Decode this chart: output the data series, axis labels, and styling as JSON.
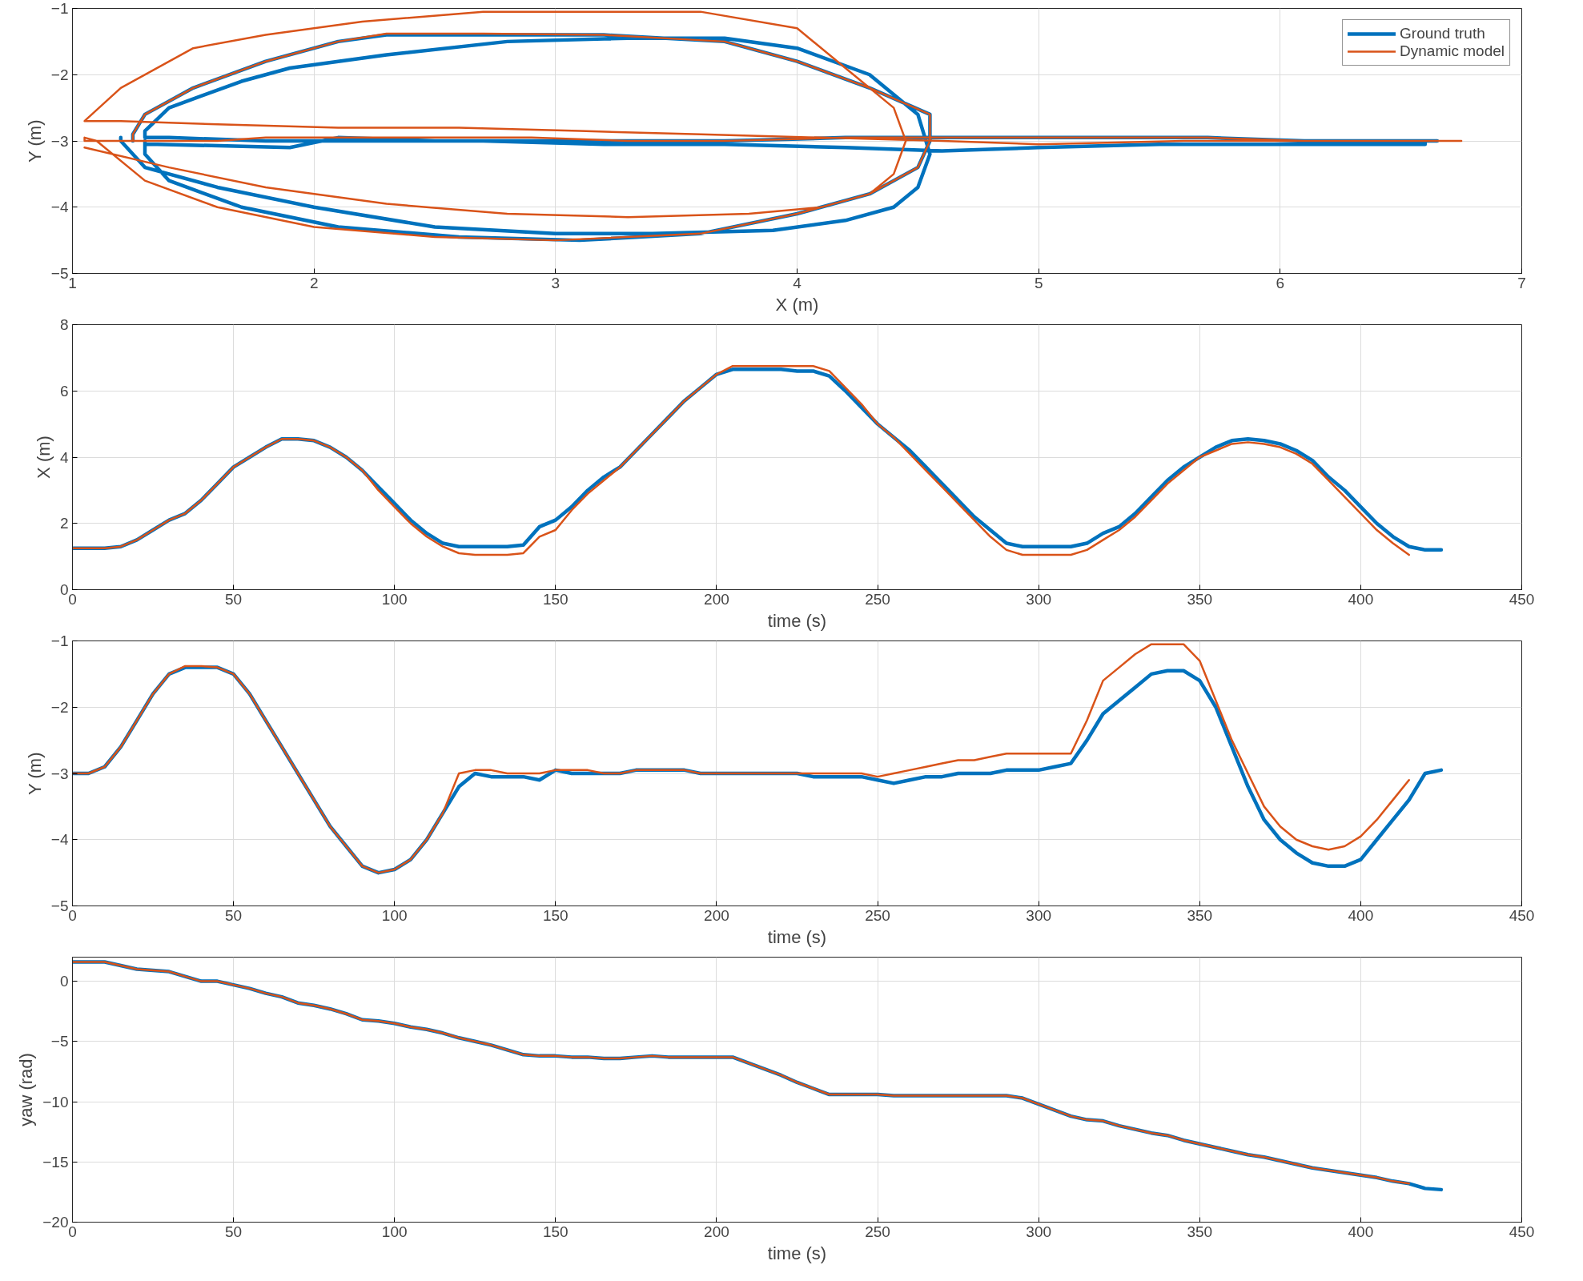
{
  "chart_data": [
    {
      "type": "line",
      "xlabel": "X (m)",
      "ylabel": "Y (m)",
      "xlim": [
        1,
        7
      ],
      "ylim": [
        -5,
        -1
      ],
      "xticks": [
        1,
        2,
        3,
        4,
        5,
        6,
        7
      ],
      "yticks": [
        -5,
        -4,
        -3,
        -2,
        -1
      ],
      "grid": true,
      "legend": "top right",
      "series": [
        {
          "name": "Ground truth",
          "color": "#0072bd",
          "x": [
            1.25,
            1.25,
            1.25,
            1.3,
            1.5,
            1.8,
            2.1,
            2.3,
            2.7,
            3.2,
            3.7,
            4.0,
            4.3,
            4.55,
            4.55,
            4.5,
            4.3,
            4.0,
            3.6,
            3.1,
            2.6,
            2.1,
            1.7,
            1.4,
            1.3,
            1.3,
            1.3,
            1.3,
            1.35,
            1.9,
            2.1,
            2.5,
            3.0,
            3.4,
            3.7,
            4.2,
            4.7,
            5.2,
            5.7,
            6.1,
            6.5,
            6.65,
            6.65,
            6.65,
            6.65,
            6.6,
            6.6,
            6.45,
            6.0,
            5.5,
            5.0,
            4.6,
            4.2,
            3.7,
            3.2,
            2.7,
            2.2,
            1.8,
            1.4,
            1.3,
            1.3,
            1.3,
            1.3,
            1.4,
            1.7,
            1.9,
            2.3,
            2.8,
            3.3,
            3.7,
            4.0,
            4.3,
            4.5,
            4.55,
            4.5,
            4.4,
            4.2,
            3.9,
            3.4,
            3.0,
            2.5,
            2.0,
            1.6,
            1.3,
            1.2,
            1.2
          ],
          "values": [
            -3.0,
            -3.0,
            -2.9,
            -2.6,
            -2.2,
            -1.8,
            -1.5,
            -1.4,
            -1.4,
            -1.4,
            -1.5,
            -1.8,
            -2.2,
            -2.6,
            -3.0,
            -3.4,
            -3.8,
            -4.1,
            -4.4,
            -4.5,
            -4.45,
            -4.3,
            -4.0,
            -3.6,
            -3.2,
            -3.0,
            -3.05,
            -3.05,
            -3.05,
            -3.1,
            -2.95,
            -3.0,
            -3.0,
            -3.0,
            -3.0,
            -2.95,
            -2.95,
            -2.95,
            -2.95,
            -3.0,
            -3.0,
            -3.0,
            -3.0,
            -3.0,
            -3.0,
            -3.0,
            -3.05,
            -3.05,
            -3.05,
            -3.05,
            -3.1,
            -3.15,
            -3.1,
            -3.05,
            -3.05,
            -3.0,
            -3.0,
            -3.0,
            -2.95,
            -2.95,
            -2.95,
            -2.9,
            -2.85,
            -2.5,
            -2.1,
            -1.9,
            -1.7,
            -1.5,
            -1.45,
            -1.45,
            -1.6,
            -2.0,
            -2.6,
            -3.2,
            -3.7,
            -4.0,
            -4.2,
            -4.35,
            -4.4,
            -4.4,
            -4.3,
            -4.0,
            -3.7,
            -3.4,
            -3.0,
            -2.95
          ]
        },
        {
          "name": "Dynamic model",
          "color": "#d95319",
          "x": [
            1.25,
            1.25,
            1.25,
            1.3,
            1.5,
            1.8,
            2.1,
            2.3,
            2.7,
            3.2,
            3.7,
            4.0,
            4.3,
            4.55,
            4.55,
            4.5,
            4.3,
            4.0,
            3.6,
            3.0,
            2.5,
            2.0,
            1.6,
            1.3,
            1.1,
            1.05,
            1.05,
            1.05,
            1.1,
            1.6,
            1.8,
            2.4,
            2.9,
            3.3,
            3.7,
            4.2,
            4.7,
            5.2,
            5.7,
            6.1,
            6.5,
            6.75,
            6.75,
            6.75,
            6.75,
            6.75,
            6.75,
            6.6,
            6.1,
            5.6,
            5.0,
            4.6,
            4.1,
            3.6,
            3.1,
            2.6,
            2.1,
            1.6,
            1.2,
            1.05,
            1.05,
            1.05,
            1.05,
            1.2,
            1.5,
            1.8,
            2.2,
            2.7,
            3.2,
            3.6,
            4.0,
            4.2,
            4.4,
            4.45,
            4.4,
            4.3,
            4.1,
            3.8,
            3.3,
            2.8,
            2.3,
            1.8,
            1.4,
            1.05
          ],
          "values": [
            -3.0,
            -3.0,
            -2.9,
            -2.6,
            -2.2,
            -1.8,
            -1.5,
            -1.38,
            -1.38,
            -1.4,
            -1.5,
            -1.8,
            -2.2,
            -2.6,
            -3.0,
            -3.4,
            -3.8,
            -4.1,
            -4.4,
            -4.5,
            -4.45,
            -4.3,
            -4.0,
            -3.6,
            -3.0,
            -2.95,
            -2.95,
            -3.0,
            -3.0,
            -3.0,
            -2.95,
            -2.95,
            -2.95,
            -3.0,
            -3.0,
            -2.95,
            -2.95,
            -2.95,
            -2.95,
            -3.0,
            -3.0,
            -3.0,
            -3.0,
            -3.0,
            -3.0,
            -3.0,
            -3.0,
            -3.0,
            -3.0,
            -3.0,
            -3.05,
            -3.0,
            -2.95,
            -2.9,
            -2.85,
            -2.8,
            -2.8,
            -2.75,
            -2.7,
            -2.7,
            -2.7,
            -2.7,
            -2.7,
            -2.2,
            -1.6,
            -1.4,
            -1.2,
            -1.05,
            -1.05,
            -1.05,
            -1.3,
            -1.9,
            -2.5,
            -3.0,
            -3.5,
            -3.8,
            -4.0,
            -4.1,
            -4.15,
            -4.1,
            -3.95,
            -3.7,
            -3.4,
            -3.1
          ]
        }
      ]
    },
    {
      "type": "line",
      "xlabel": "time (s)",
      "ylabel": "X (m)",
      "xlim": [
        0,
        450
      ],
      "ylim": [
        0,
        8
      ],
      "xticks": [
        0,
        50,
        100,
        150,
        200,
        250,
        300,
        350,
        400,
        450
      ],
      "yticks": [
        0,
        2,
        4,
        6,
        8
      ],
      "grid": true,
      "series": [
        {
          "color": "#0072bd",
          "x": [
            0,
            5,
            10,
            15,
            20,
            25,
            30,
            35,
            40,
            45,
            50,
            55,
            60,
            65,
            70,
            75,
            80,
            85,
            90,
            95,
            100,
            105,
            110,
            115,
            120,
            125,
            130,
            135,
            140,
            145,
            150,
            155,
            160,
            165,
            170,
            175,
            180,
            185,
            190,
            195,
            200,
            205,
            210,
            215,
            220,
            225,
            230,
            235,
            240,
            245,
            250,
            255,
            260,
            265,
            270,
            275,
            280,
            285,
            290,
            295,
            300,
            305,
            310,
            315,
            320,
            325,
            330,
            335,
            340,
            345,
            350,
            355,
            360,
            365,
            370,
            375,
            380,
            385,
            390,
            395,
            400,
            405,
            410,
            415,
            420,
            425
          ],
          "values": [
            1.25,
            1.25,
            1.25,
            1.3,
            1.5,
            1.8,
            2.1,
            2.3,
            2.7,
            3.2,
            3.7,
            4.0,
            4.3,
            4.55,
            4.55,
            4.5,
            4.3,
            4.0,
            3.6,
            3.1,
            2.6,
            2.1,
            1.7,
            1.4,
            1.3,
            1.3,
            1.3,
            1.3,
            1.35,
            1.9,
            2.1,
            2.5,
            3.0,
            3.4,
            3.7,
            4.2,
            4.7,
            5.2,
            5.7,
            6.1,
            6.5,
            6.65,
            6.65,
            6.65,
            6.65,
            6.6,
            6.6,
            6.45,
            6.0,
            5.5,
            5.0,
            4.6,
            4.2,
            3.7,
            3.2,
            2.7,
            2.2,
            1.8,
            1.4,
            1.3,
            1.3,
            1.3,
            1.3,
            1.4,
            1.7,
            1.9,
            2.3,
            2.8,
            3.3,
            3.7,
            4.0,
            4.3,
            4.5,
            4.55,
            4.5,
            4.4,
            4.2,
            3.9,
            3.4,
            3.0,
            2.5,
            2.0,
            1.6,
            1.3,
            1.2,
            1.2
          ]
        },
        {
          "color": "#d95319",
          "x": [
            0,
            5,
            10,
            15,
            20,
            25,
            30,
            35,
            40,
            45,
            50,
            55,
            60,
            65,
            70,
            75,
            80,
            85,
            90,
            95,
            100,
            105,
            110,
            115,
            120,
            125,
            130,
            135,
            140,
            145,
            150,
            155,
            160,
            165,
            170,
            175,
            180,
            185,
            190,
            195,
            200,
            205,
            210,
            215,
            220,
            225,
            230,
            235,
            240,
            245,
            250,
            255,
            260,
            265,
            270,
            275,
            280,
            285,
            290,
            295,
            300,
            305,
            310,
            315,
            320,
            325,
            330,
            335,
            340,
            345,
            350,
            355,
            360,
            365,
            370,
            375,
            380,
            385,
            390,
            395,
            400,
            405,
            410,
            415
          ],
          "values": [
            1.25,
            1.25,
            1.25,
            1.3,
            1.5,
            1.8,
            2.1,
            2.3,
            2.7,
            3.2,
            3.7,
            4.0,
            4.3,
            4.55,
            4.55,
            4.5,
            4.3,
            4.0,
            3.6,
            3.0,
            2.5,
            2.0,
            1.6,
            1.3,
            1.1,
            1.05,
            1.05,
            1.05,
            1.1,
            1.6,
            1.8,
            2.4,
            2.9,
            3.3,
            3.7,
            4.2,
            4.7,
            5.2,
            5.7,
            6.1,
            6.5,
            6.75,
            6.75,
            6.75,
            6.75,
            6.75,
            6.75,
            6.6,
            6.1,
            5.6,
            5.0,
            4.6,
            4.1,
            3.6,
            3.1,
            2.6,
            2.1,
            1.6,
            1.2,
            1.05,
            1.05,
            1.05,
            1.05,
            1.2,
            1.5,
            1.8,
            2.2,
            2.7,
            3.2,
            3.6,
            4.0,
            4.2,
            4.4,
            4.45,
            4.4,
            4.3,
            4.1,
            3.8,
            3.3,
            2.8,
            2.3,
            1.8,
            1.4,
            1.05
          ]
        }
      ]
    },
    {
      "type": "line",
      "xlabel": "time (s)",
      "ylabel": "Y (m)",
      "xlim": [
        0,
        450
      ],
      "ylim": [
        -5,
        -1
      ],
      "xticks": [
        0,
        50,
        100,
        150,
        200,
        250,
        300,
        350,
        400,
        450
      ],
      "yticks": [
        -5,
        -4,
        -3,
        -2,
        -1
      ],
      "grid": true,
      "series": [
        {
          "color": "#0072bd",
          "x": [
            0,
            5,
            10,
            15,
            20,
            25,
            30,
            35,
            40,
            45,
            50,
            55,
            60,
            65,
            70,
            75,
            80,
            85,
            90,
            95,
            100,
            105,
            110,
            115,
            120,
            125,
            130,
            135,
            140,
            145,
            150,
            155,
            160,
            165,
            170,
            175,
            180,
            185,
            190,
            195,
            200,
            205,
            210,
            215,
            220,
            225,
            230,
            235,
            240,
            245,
            250,
            255,
            260,
            265,
            270,
            275,
            280,
            285,
            290,
            295,
            300,
            305,
            310,
            315,
            320,
            325,
            330,
            335,
            340,
            345,
            350,
            355,
            360,
            365,
            370,
            375,
            380,
            385,
            390,
            395,
            400,
            405,
            410,
            415,
            420,
            425
          ],
          "values": [
            -3.0,
            -3.0,
            -2.9,
            -2.6,
            -2.2,
            -1.8,
            -1.5,
            -1.4,
            -1.4,
            -1.4,
            -1.5,
            -1.8,
            -2.2,
            -2.6,
            -3.0,
            -3.4,
            -3.8,
            -4.1,
            -4.4,
            -4.5,
            -4.45,
            -4.3,
            -4.0,
            -3.6,
            -3.2,
            -3.0,
            -3.05,
            -3.05,
            -3.05,
            -3.1,
            -2.95,
            -3.0,
            -3.0,
            -3.0,
            -3.0,
            -2.95,
            -2.95,
            -2.95,
            -2.95,
            -3.0,
            -3.0,
            -3.0,
            -3.0,
            -3.0,
            -3.0,
            -3.0,
            -3.05,
            -3.05,
            -3.05,
            -3.05,
            -3.1,
            -3.15,
            -3.1,
            -3.05,
            -3.05,
            -3.0,
            -3.0,
            -3.0,
            -2.95,
            -2.95,
            -2.95,
            -2.9,
            -2.85,
            -2.5,
            -2.1,
            -1.9,
            -1.7,
            -1.5,
            -1.45,
            -1.45,
            -1.6,
            -2.0,
            -2.6,
            -3.2,
            -3.7,
            -4.0,
            -4.2,
            -4.35,
            -4.4,
            -4.4,
            -4.3,
            -4.0,
            -3.7,
            -3.4,
            -3.0,
            -2.95
          ]
        },
        {
          "color": "#d95319",
          "x": [
            0,
            5,
            10,
            15,
            20,
            25,
            30,
            35,
            40,
            45,
            50,
            55,
            60,
            65,
            70,
            75,
            80,
            85,
            90,
            95,
            100,
            105,
            110,
            115,
            120,
            125,
            130,
            135,
            140,
            145,
            150,
            155,
            160,
            165,
            170,
            175,
            180,
            185,
            190,
            195,
            200,
            205,
            210,
            215,
            220,
            225,
            230,
            235,
            240,
            245,
            250,
            255,
            260,
            265,
            270,
            275,
            280,
            285,
            290,
            295,
            300,
            305,
            310,
            315,
            320,
            325,
            330,
            335,
            340,
            345,
            350,
            355,
            360,
            365,
            370,
            375,
            380,
            385,
            390,
            395,
            400,
            405,
            410,
            415
          ],
          "values": [
            -3.0,
            -3.0,
            -2.9,
            -2.6,
            -2.2,
            -1.8,
            -1.5,
            -1.38,
            -1.38,
            -1.4,
            -1.5,
            -1.8,
            -2.2,
            -2.6,
            -3.0,
            -3.4,
            -3.8,
            -4.1,
            -4.4,
            -4.5,
            -4.45,
            -4.3,
            -4.0,
            -3.6,
            -3.0,
            -2.95,
            -2.95,
            -3.0,
            -3.0,
            -3.0,
            -2.95,
            -2.95,
            -2.95,
            -3.0,
            -3.0,
            -2.95,
            -2.95,
            -2.95,
            -2.95,
            -3.0,
            -3.0,
            -3.0,
            -3.0,
            -3.0,
            -3.0,
            -3.0,
            -3.0,
            -3.0,
            -3.0,
            -3.0,
            -3.05,
            -3.0,
            -2.95,
            -2.9,
            -2.85,
            -2.8,
            -2.8,
            -2.75,
            -2.7,
            -2.7,
            -2.7,
            -2.7,
            -2.7,
            -2.2,
            -1.6,
            -1.4,
            -1.2,
            -1.05,
            -1.05,
            -1.05,
            -1.3,
            -1.9,
            -2.5,
            -3.0,
            -3.5,
            -3.8,
            -4.0,
            -4.1,
            -4.15,
            -4.1,
            -3.95,
            -3.7,
            -3.4,
            -3.1
          ]
        }
      ]
    },
    {
      "type": "line",
      "xlabel": "time (s)",
      "ylabel": "yaw (rad)",
      "xlim": [
        0,
        450
      ],
      "ylim": [
        -20,
        2
      ],
      "xticks": [
        0,
        50,
        100,
        150,
        200,
        250,
        300,
        350,
        400,
        450
      ],
      "yticks": [
        -20,
        -15,
        -10,
        -5,
        0
      ],
      "grid": true,
      "series": [
        {
          "color": "#0072bd",
          "x": [
            0,
            5,
            10,
            15,
            20,
            25,
            30,
            35,
            40,
            45,
            50,
            55,
            60,
            65,
            70,
            75,
            80,
            85,
            90,
            95,
            100,
            105,
            110,
            115,
            120,
            125,
            130,
            135,
            140,
            145,
            150,
            155,
            160,
            165,
            170,
            175,
            180,
            185,
            190,
            195,
            200,
            205,
            210,
            215,
            220,
            225,
            230,
            235,
            240,
            245,
            250,
            255,
            260,
            265,
            270,
            275,
            280,
            285,
            290,
            295,
            300,
            305,
            310,
            315,
            320,
            325,
            330,
            335,
            340,
            345,
            350,
            355,
            360,
            365,
            370,
            375,
            380,
            385,
            390,
            395,
            400,
            405,
            410,
            415,
            420,
            425
          ],
          "values": [
            1.6,
            1.6,
            1.6,
            1.3,
            1.0,
            0.9,
            0.8,
            0.4,
            0.0,
            0.0,
            -0.3,
            -0.6,
            -1.0,
            -1.3,
            -1.8,
            -2.0,
            -2.3,
            -2.7,
            -3.2,
            -3.3,
            -3.5,
            -3.8,
            -4.0,
            -4.3,
            -4.7,
            -5.0,
            -5.3,
            -5.7,
            -6.1,
            -6.2,
            -6.2,
            -6.3,
            -6.3,
            -6.4,
            -6.4,
            -6.3,
            -6.2,
            -6.3,
            -6.3,
            -6.3,
            -6.3,
            -6.3,
            -6.8,
            -7.3,
            -7.8,
            -8.4,
            -8.9,
            -9.4,
            -9.4,
            -9.4,
            -9.4,
            -9.5,
            -9.5,
            -9.5,
            -9.5,
            -9.5,
            -9.5,
            -9.5,
            -9.5,
            -9.7,
            -10.2,
            -10.7,
            -11.2,
            -11.5,
            -11.6,
            -12.0,
            -12.3,
            -12.6,
            -12.8,
            -13.2,
            -13.5,
            -13.8,
            -14.1,
            -14.4,
            -14.6,
            -14.9,
            -15.2,
            -15.5,
            -15.7,
            -15.9,
            -16.1,
            -16.3,
            -16.6,
            -16.8,
            -17.2,
            -17.3
          ]
        },
        {
          "color": "#d95319",
          "x": [
            0,
            5,
            10,
            15,
            20,
            25,
            30,
            35,
            40,
            45,
            50,
            55,
            60,
            65,
            70,
            75,
            80,
            85,
            90,
            95,
            100,
            105,
            110,
            115,
            120,
            125,
            130,
            135,
            140,
            145,
            150,
            155,
            160,
            165,
            170,
            175,
            180,
            185,
            190,
            195,
            200,
            205,
            210,
            215,
            220,
            225,
            230,
            235,
            240,
            245,
            250,
            255,
            260,
            265,
            270,
            275,
            280,
            285,
            290,
            295,
            300,
            305,
            310,
            315,
            320,
            325,
            330,
            335,
            340,
            345,
            350,
            355,
            360,
            365,
            370,
            375,
            380,
            385,
            390,
            395,
            400,
            405,
            410,
            415
          ],
          "values": [
            1.6,
            1.6,
            1.6,
            1.3,
            1.0,
            0.9,
            0.8,
            0.4,
            0.0,
            0.0,
            -0.3,
            -0.6,
            -1.0,
            -1.3,
            -1.8,
            -2.0,
            -2.3,
            -2.7,
            -3.2,
            -3.3,
            -3.5,
            -3.8,
            -4.0,
            -4.3,
            -4.7,
            -5.0,
            -5.3,
            -5.7,
            -6.1,
            -6.2,
            -6.2,
            -6.3,
            -6.3,
            -6.4,
            -6.4,
            -6.3,
            -6.2,
            -6.3,
            -6.3,
            -6.3,
            -6.3,
            -6.3,
            -6.8,
            -7.3,
            -7.8,
            -8.4,
            -8.9,
            -9.4,
            -9.4,
            -9.4,
            -9.4,
            -9.5,
            -9.5,
            -9.5,
            -9.5,
            -9.5,
            -9.5,
            -9.5,
            -9.5,
            -9.7,
            -10.2,
            -10.7,
            -11.2,
            -11.5,
            -11.6,
            -12.0,
            -12.3,
            -12.6,
            -12.8,
            -13.2,
            -13.5,
            -13.8,
            -14.1,
            -14.4,
            -14.6,
            -14.9,
            -15.2,
            -15.5,
            -15.7,
            -15.9,
            -16.1,
            -16.3,
            -16.6,
            -16.8
          ]
        }
      ]
    }
  ]
}
